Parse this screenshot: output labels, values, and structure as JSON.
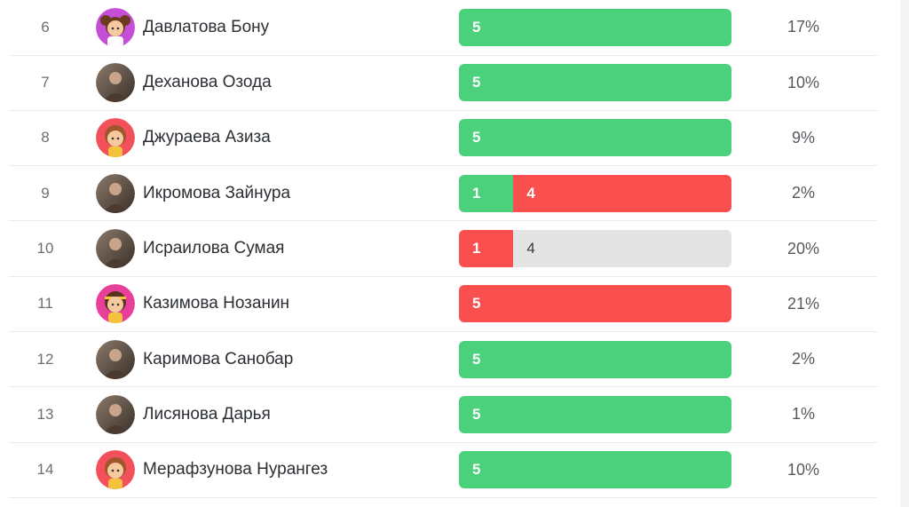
{
  "colors": {
    "green": "#4bd17b",
    "red": "#fa4f4f",
    "gray": "#e4e4e4",
    "gray_text": "#3a3a3a"
  },
  "rows": [
    {
      "rank": "6",
      "name": "Давлатова Бону",
      "avatar": "girl-icon-purple",
      "segments": [
        {
          "value": "5",
          "color": "green"
        }
      ],
      "percent": "17%"
    },
    {
      "rank": "7",
      "name": "Деханова Озода",
      "avatar": "photo-avatar",
      "segments": [
        {
          "value": "5",
          "color": "green"
        }
      ],
      "percent": "10%"
    },
    {
      "rank": "8",
      "name": "Джураева Азиза",
      "avatar": "girl-icon-red",
      "segments": [
        {
          "value": "5",
          "color": "green"
        }
      ],
      "percent": "9%"
    },
    {
      "rank": "9",
      "name": "Икромова Зайнура",
      "avatar": "photo-avatar",
      "segments": [
        {
          "value": "1",
          "color": "green"
        },
        {
          "value": "4",
          "color": "red"
        }
      ],
      "percent": "2%"
    },
    {
      "rank": "10",
      "name": "Исраилова Сумая",
      "avatar": "photo-avatar",
      "segments": [
        {
          "value": "1",
          "color": "red"
        },
        {
          "value": "4",
          "color": "gray"
        }
      ],
      "percent": "20%"
    },
    {
      "rank": "11",
      "name": "Казимова Нозанин",
      "avatar": "girl-icon-pink",
      "segments": [
        {
          "value": "5",
          "color": "red"
        }
      ],
      "percent": "21%"
    },
    {
      "rank": "12",
      "name": "Каримова Санобар",
      "avatar": "photo-avatar",
      "segments": [
        {
          "value": "5",
          "color": "green"
        }
      ],
      "percent": "2%"
    },
    {
      "rank": "13",
      "name": "Лисянова Дарья",
      "avatar": "photo-avatar",
      "segments": [
        {
          "value": "5",
          "color": "green"
        }
      ],
      "percent": "1%"
    },
    {
      "rank": "14",
      "name": "Мерафзунова Нурангез",
      "avatar": "girl-icon-red",
      "segments": [
        {
          "value": "5",
          "color": "green"
        }
      ],
      "percent": "10%"
    }
  ]
}
